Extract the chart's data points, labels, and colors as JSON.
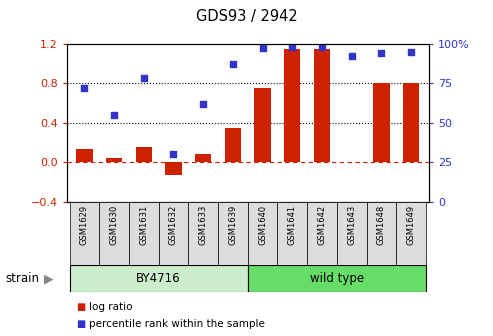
{
  "title": "GDS93 / 2942",
  "samples": [
    "GSM1629",
    "GSM1630",
    "GSM1631",
    "GSM1632",
    "GSM1633",
    "GSM1639",
    "GSM1640",
    "GSM1641",
    "GSM1642",
    "GSM1643",
    "GSM1648",
    "GSM1649"
  ],
  "log_ratio": [
    0.13,
    0.04,
    0.15,
    -0.13,
    0.08,
    0.35,
    0.75,
    1.15,
    1.15,
    0.0,
    0.8,
    0.8
  ],
  "percentile": [
    72,
    55,
    78,
    30,
    62,
    87,
    97,
    98,
    98,
    92,
    94,
    95
  ],
  "bar_color": "#cc2200",
  "dot_color": "#3333cc",
  "ylim_left": [
    -0.4,
    1.2
  ],
  "ylim_right": [
    0,
    100
  ],
  "yticks_left": [
    -0.4,
    0.0,
    0.4,
    0.8,
    1.2
  ],
  "yticks_right": [
    0,
    25,
    50,
    75,
    100
  ],
  "ytick_labels_right": [
    "0",
    "25",
    "50",
    "75",
    "100%"
  ],
  "hline_dotted": [
    0.4,
    0.8
  ],
  "hline_dash": 0.0,
  "strain_groups": [
    {
      "label": "BY4716",
      "start": 0,
      "end": 6,
      "color": "#cceecc"
    },
    {
      "label": "wild type",
      "start": 6,
      "end": 12,
      "color": "#66dd66"
    }
  ],
  "strain_row_label": "strain",
  "legend_items": [
    {
      "color": "#cc2200",
      "label": "log ratio"
    },
    {
      "color": "#3333cc",
      "label": "percentile rank within the sample"
    }
  ],
  "background_color": "#ffffff",
  "tick_label_color_left": "#cc2200",
  "tick_label_color_right": "#3333cc",
  "zero_line_color": "#cc2200",
  "bar_width": 0.55,
  "label_box_color": "#dddddd"
}
